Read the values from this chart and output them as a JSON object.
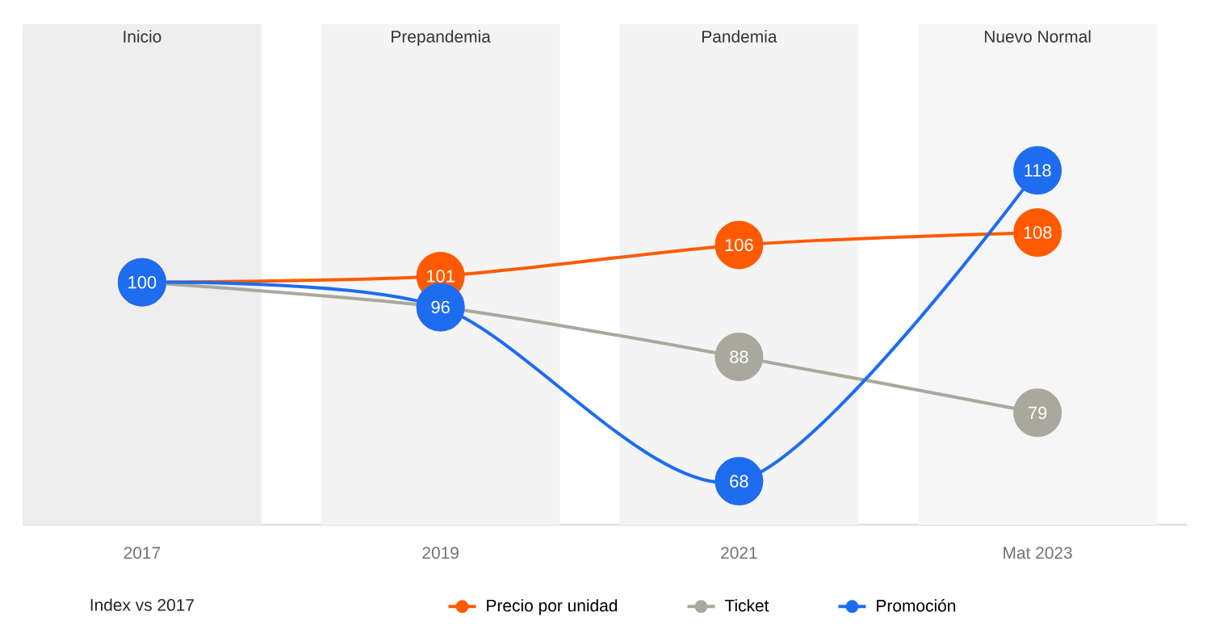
{
  "chart_data": {
    "type": "line",
    "categories": [
      "2017",
      "2019",
      "2021",
      "Mat 2023"
    ],
    "series": [
      {
        "name": "Precio por unidad",
        "color": "#ff5a00",
        "values": [
          100,
          101,
          106,
          108
        ],
        "value_labels": [
          null,
          "101",
          "106",
          "108"
        ]
      },
      {
        "name": "Ticket",
        "color": "#a8a89c",
        "values": [
          100,
          96,
          88,
          79
        ],
        "value_labels": [
          null,
          null,
          "88",
          "79"
        ]
      },
      {
        "name": "Promoción",
        "color": "#1e6cf0",
        "values": [
          100,
          96,
          68,
          118
        ],
        "value_labels": [
          "100",
          "96",
          "68",
          "118"
        ]
      }
    ],
    "bands": [
      {
        "axis": "x",
        "from": "2017",
        "to": "2017",
        "label": "Inicio",
        "color": "#eeeeee"
      },
      {
        "axis": "x",
        "from": "2019",
        "to": "2019",
        "label": "Prepandemia",
        "color": "#f4f4f4"
      },
      {
        "axis": "x",
        "from": "2021",
        "to": "2021",
        "label": "Pandemia",
        "color": "#f4f4f4"
      },
      {
        "axis": "x",
        "from": "Mat 2023",
        "to": "Mat 2023",
        "label": "Nuevo Normal",
        "color": "#f6f6f6"
      }
    ],
    "annotations": [
      "Index vs 2017"
    ],
    "marker": "circle",
    "line_style": "solid",
    "legend": "bottom"
  }
}
